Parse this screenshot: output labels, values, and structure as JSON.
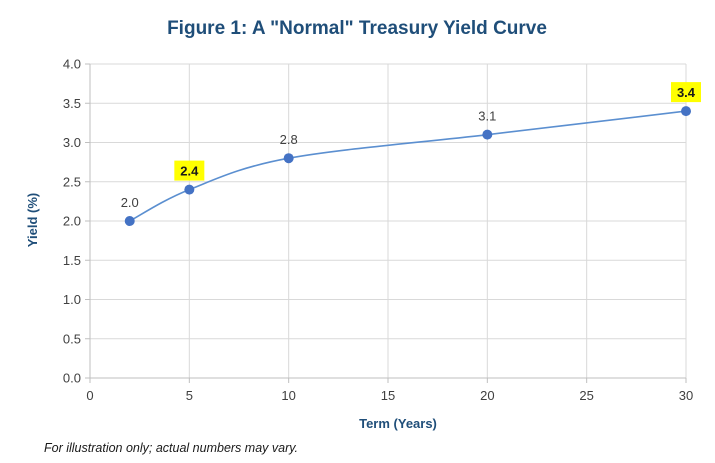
{
  "chart_data": {
    "type": "line",
    "title": "Figure 1: A \"Normal\" Treasury Yield Curve",
    "xlabel": "Term (Years)",
    "ylabel": "Yield (%)",
    "xlim": [
      0,
      30
    ],
    "ylim": [
      0,
      4
    ],
    "x_ticks": [
      "0",
      "5",
      "10",
      "15",
      "20",
      "25",
      "30"
    ],
    "y_ticks": [
      "0.0",
      "0.5",
      "1.0",
      "1.5",
      "2.0",
      "2.5",
      "3.0",
      "3.5",
      "4.0"
    ],
    "grid": true,
    "smooth": true,
    "series": [
      {
        "x": [
          2,
          5,
          10,
          20,
          30
        ],
        "y": [
          2.0,
          2.4,
          2.8,
          3.1,
          3.4
        ],
        "labels": [
          "2.0",
          "2.4",
          "2.8",
          "3.1",
          "3.4"
        ],
        "highlighted": [
          false,
          true,
          false,
          false,
          true
        ]
      }
    ],
    "colors": {
      "line": "#5b8fd0",
      "marker": "#4472c4",
      "title": "#1f4e79",
      "gridline": "#d9d9d9",
      "highlight": "#ffff00"
    }
  },
  "footnote": "For illustration only; actual numbers may vary."
}
